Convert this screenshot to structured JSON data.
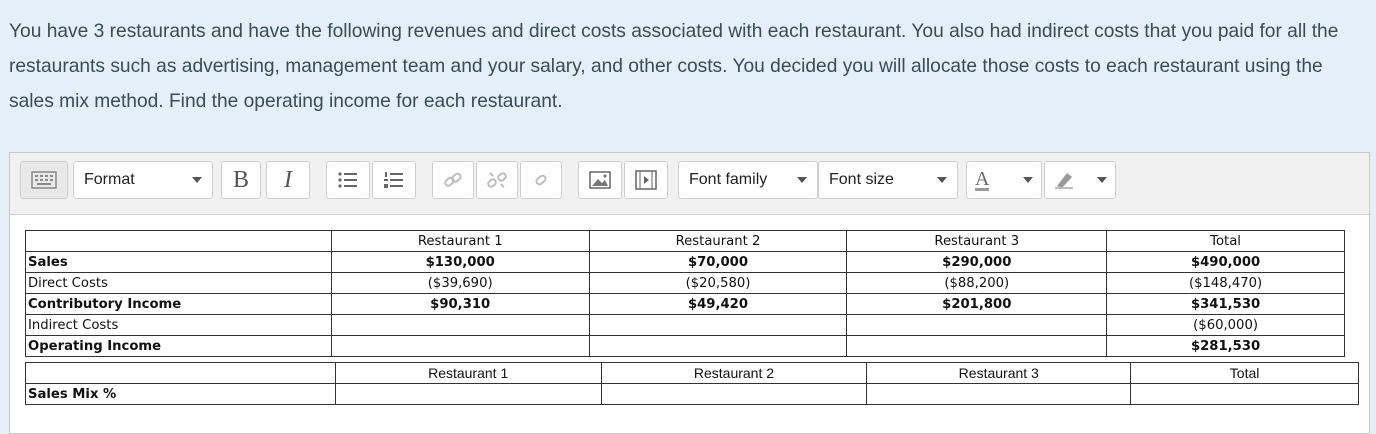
{
  "question": "You have 3 restaurants and have the following revenues and direct costs associated with each restaurant. You also had indirect costs that you paid for all the restaurants such as advertising, management team and your salary, and other costs. You decided you will allocate those costs to each restaurant using the sales mix method. Find the operating income for each restaurant.",
  "toolbar": {
    "format_label": "Format",
    "bold_label": "B",
    "italic_label": "I",
    "font_family_label": "Font family",
    "font_size_label": "Font size",
    "text_color_label": "A"
  },
  "table1": {
    "headers": [
      "",
      "Restaurant 1",
      "Restaurant 2",
      "Restaurant 3",
      "Total"
    ],
    "rows": [
      [
        "Sales",
        "$130,000",
        "$70,000",
        "$290,000",
        "$490,000"
      ],
      [
        "Direct Costs",
        "($39,690)",
        "($20,580)",
        "($88,200)",
        "($148,470)"
      ],
      [
        "Contributory Income",
        "$90,310",
        "$49,420",
        "$201,800",
        "$341,530"
      ],
      [
        "Indirect Costs",
        "",
        "",
        "",
        "($60,000)"
      ],
      [
        "Operating Income",
        "",
        "",
        "",
        "$281,530"
      ]
    ]
  },
  "table2": {
    "headers": [
      "",
      "Restaurant 1",
      "Restaurant 2",
      "Restaurant 3",
      "Total"
    ],
    "rows": [
      [
        "Sales Mix %",
        "",
        "",
        "",
        ""
      ]
    ]
  }
}
